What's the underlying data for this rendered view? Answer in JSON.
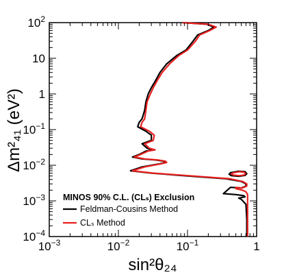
{
  "chart_data": {
    "type": "line",
    "xlabel": "sin²θ₂₄",
    "ylabel": "Δm²₄₁ (eV²)",
    "xscale": "log",
    "yscale": "log",
    "xlim": [
      0.001,
      1
    ],
    "ylim": [
      0.0001,
      100
    ],
    "grid": false,
    "legend_placement": "bottom-left",
    "x_tick_labels": [
      {
        "value": 0.001,
        "base": "10",
        "exp": "−3"
      },
      {
        "value": 0.01,
        "base": "10",
        "exp": "−2"
      },
      {
        "value": 0.1,
        "base": "10",
        "exp": "−1"
      },
      {
        "value": 1,
        "base": "1",
        "exp": ""
      }
    ],
    "y_tick_labels": [
      {
        "value": 0.0001,
        "base": "10",
        "exp": "−4"
      },
      {
        "value": 0.001,
        "base": "10",
        "exp": "−3"
      },
      {
        "value": 0.01,
        "base": "10",
        "exp": "−2"
      },
      {
        "value": 0.1,
        "base": "10",
        "exp": "−1"
      },
      {
        "value": 1,
        "base": "1",
        "exp": ""
      },
      {
        "value": 10,
        "base": "10",
        "exp": ""
      },
      {
        "value": 100,
        "base": "10",
        "exp": "2"
      }
    ],
    "legend": {
      "title": "MINOS 90% C.L. (CLₛ) Exclusion",
      "entries": [
        {
          "label": "Feldman-Cousins Method",
          "color": "#000000"
        },
        {
          "label": "CLₛ Method",
          "color": "#e8201f"
        }
      ]
    },
    "series": [
      {
        "name": "Feldman-Cousins Method",
        "color": "#000000",
        "points": [
          [
            0.085,
            100
          ],
          [
            0.19,
            90
          ],
          [
            0.24,
            75
          ],
          [
            0.2,
            60
          ],
          [
            0.14,
            45
          ],
          [
            0.12,
            30
          ],
          [
            0.095,
            17
          ],
          [
            0.07,
            12
          ],
          [
            0.05,
            7
          ],
          [
            0.04,
            4
          ],
          [
            0.035,
            2.5
          ],
          [
            0.03,
            1.5
          ],
          [
            0.027,
            1
          ],
          [
            0.025,
            0.6
          ],
          [
            0.024,
            0.35
          ],
          [
            0.022,
            0.2
          ],
          [
            0.02,
            0.16
          ],
          [
            0.019,
            0.12
          ],
          [
            0.025,
            0.09
          ],
          [
            0.03,
            0.07
          ],
          [
            0.03,
            0.05
          ],
          [
            0.022,
            0.04
          ],
          [
            0.026,
            0.03
          ],
          [
            0.032,
            0.027
          ],
          [
            0.025,
            0.025
          ],
          [
            0.02,
            0.02
          ],
          [
            0.016,
            0.017
          ],
          [
            0.022,
            0.015
          ],
          [
            0.035,
            0.014
          ],
          [
            0.045,
            0.013
          ],
          [
            0.048,
            0.012
          ],
          [
            0.04,
            0.011
          ],
          [
            0.022,
            0.009
          ],
          [
            0.015,
            0.007
          ],
          [
            0.03,
            0.006
          ],
          [
            0.1,
            0.005
          ],
          [
            0.35,
            0.0042
          ],
          [
            0.6,
            0.0035
          ],
          [
            0.7,
            0.003
          ],
          [
            0.7,
            0.0026
          ],
          [
            0.6,
            0.0023
          ],
          [
            0.42,
            0.0024
          ],
          [
            0.33,
            0.0016
          ],
          [
            0.5,
            0.0015
          ],
          [
            0.65,
            0.0014
          ],
          [
            0.68,
            0.0013
          ],
          [
            0.55,
            0.0012
          ],
          [
            0.6,
            0.0011
          ],
          [
            0.7,
            0.0008
          ],
          [
            0.72,
            0.0003
          ],
          [
            0.72,
            0.0001
          ]
        ]
      },
      {
        "name": "CLₛ Method",
        "color": "#e8201f",
        "points": [
          [
            0.085,
            100
          ],
          [
            0.2,
            90
          ],
          [
            0.26,
            75
          ],
          [
            0.21,
            60
          ],
          [
            0.15,
            45
          ],
          [
            0.13,
            30
          ],
          [
            0.1,
            17
          ],
          [
            0.075,
            12
          ],
          [
            0.055,
            7
          ],
          [
            0.043,
            4
          ],
          [
            0.037,
            2.5
          ],
          [
            0.032,
            1.5
          ],
          [
            0.029,
            1
          ],
          [
            0.026,
            0.6
          ],
          [
            0.025,
            0.35
          ],
          [
            0.024,
            0.2
          ],
          [
            0.022,
            0.16
          ],
          [
            0.021,
            0.12
          ],
          [
            0.028,
            0.09
          ],
          [
            0.033,
            0.07
          ],
          [
            0.032,
            0.05
          ],
          [
            0.024,
            0.04
          ],
          [
            0.028,
            0.03
          ],
          [
            0.034,
            0.027
          ],
          [
            0.027,
            0.025
          ],
          [
            0.021,
            0.02
          ],
          [
            0.017,
            0.017
          ],
          [
            0.024,
            0.015
          ],
          [
            0.038,
            0.014
          ],
          [
            0.048,
            0.013
          ],
          [
            0.05,
            0.012
          ],
          [
            0.042,
            0.011
          ],
          [
            0.024,
            0.009
          ],
          [
            0.016,
            0.007
          ],
          [
            0.032,
            0.006
          ],
          [
            0.12,
            0.005
          ],
          [
            0.4,
            0.0042
          ],
          [
            0.63,
            0.0035
          ],
          [
            0.72,
            0.003
          ],
          [
            0.72,
            0.0026
          ],
          [
            0.62,
            0.0023
          ],
          [
            0.5,
            0.0024
          ],
          [
            0.5,
            0.0022
          ],
          [
            0.62,
            0.002
          ],
          [
            0.7,
            0.0018
          ],
          [
            0.74,
            0.0015
          ],
          [
            0.74,
            0.0008
          ],
          [
            0.74,
            0.0003
          ],
          [
            0.74,
            0.0001
          ]
        ]
      },
      {
        "name": "",
        "color": "#000000",
        "closed": true,
        "points": [
          [
            0.42,
            0.0062
          ],
          [
            0.55,
            0.0068
          ],
          [
            0.68,
            0.0066
          ],
          [
            0.72,
            0.0058
          ],
          [
            0.68,
            0.0052
          ],
          [
            0.55,
            0.0049
          ],
          [
            0.43,
            0.0051
          ],
          [
            0.4,
            0.0056
          ]
        ]
      },
      {
        "name": "",
        "color": "#e8201f",
        "closed": true,
        "points": [
          [
            0.45,
            0.0061
          ],
          [
            0.56,
            0.0066
          ],
          [
            0.66,
            0.0064
          ],
          [
            0.69,
            0.0058
          ],
          [
            0.66,
            0.0053
          ],
          [
            0.56,
            0.0051
          ],
          [
            0.46,
            0.0053
          ],
          [
            0.43,
            0.0057
          ]
        ]
      }
    ]
  }
}
